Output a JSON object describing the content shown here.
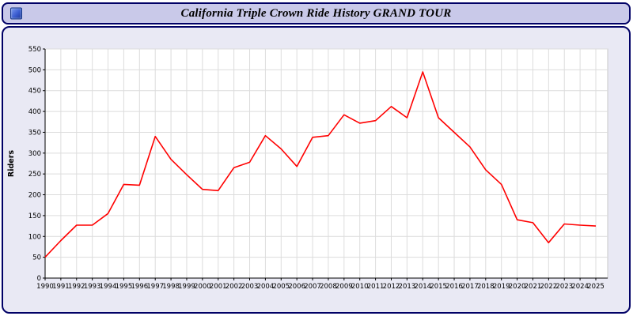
{
  "header": {
    "title": "California Triple Crown Ride History GRAND TOUR"
  },
  "theme": {
    "panel_background": "#e9e9f4",
    "titlebar_background": "#c9c9e9",
    "border_color": "#000066",
    "plot_background": "#ffffff",
    "gridline_color": "#dcdcdc",
    "line_color": "#ff0000"
  },
  "chart_data": {
    "type": "line",
    "title": "California Triple Crown Ride History GRAND TOUR",
    "xlabel": "",
    "ylabel": "Riders",
    "ylim": [
      0,
      550
    ],
    "ytick_step": 50,
    "grid": true,
    "legend_position": "none",
    "line_color": "#ff0000",
    "x": [
      1990,
      1991,
      1992,
      1993,
      1994,
      1995,
      1996,
      1997,
      1998,
      1999,
      2000,
      2001,
      2002,
      2003,
      2004,
      2005,
      2006,
      2007,
      2008,
      2009,
      2010,
      2011,
      2012,
      2013,
      2014,
      2015,
      2016,
      2017,
      2018,
      2019,
      2020,
      2021,
      2022,
      2023,
      2024,
      2025
    ],
    "series": [
      {
        "name": "Riders",
        "values": [
          50,
          90,
          127,
          127,
          155,
          225,
          223,
          340,
          285,
          248,
          213,
          210,
          265,
          278,
          342,
          310,
          268,
          338,
          342,
          392,
          372,
          378,
          412,
          385,
          495,
          385,
          350,
          315,
          260,
          225,
          140,
          133,
          85,
          130,
          127,
          125
        ]
      }
    ]
  }
}
